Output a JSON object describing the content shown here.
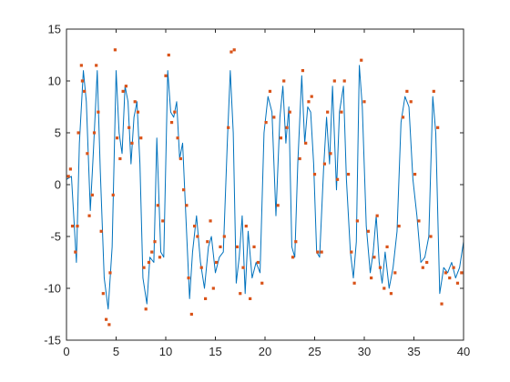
{
  "chart_data": {
    "type": "line",
    "title": "",
    "xlabel": "",
    "ylabel": "",
    "xlim": [
      0,
      40
    ],
    "ylim": [
      -15,
      15
    ],
    "xticks": [
      0,
      5,
      10,
      15,
      20,
      25,
      30,
      35,
      40
    ],
    "yticks": [
      -15,
      -10,
      -5,
      0,
      5,
      10,
      15
    ],
    "xtick_labels": [
      "0",
      "5",
      "10",
      "15",
      "20",
      "25",
      "30",
      "35",
      "40"
    ],
    "ytick_labels": [
      "-15",
      "-10",
      "-5",
      "0",
      "5",
      "10",
      "15"
    ],
    "grid": false,
    "legend": "none",
    "series": [
      {
        "type": "line",
        "color": "#0072BD",
        "x": [
          0,
          0.5,
          1.0,
          1.3,
          1.7,
          2.0,
          2.4,
          2.7,
          3.1,
          3.4,
          3.8,
          4.2,
          4.6,
          5.0,
          5.3,
          5.6,
          5.9,
          6.2,
          6.5,
          6.8,
          7.1,
          7.4,
          7.7,
          8.1,
          8.4,
          8.8,
          9.1,
          9.5,
          9.8,
          10.2,
          10.5,
          10.8,
          11.1,
          11.4,
          11.7,
          12.0,
          12.4,
          12.7,
          13.1,
          13.5,
          13.9,
          14.3,
          14.6,
          15.0,
          15.4,
          15.8,
          16.2,
          16.5,
          16.8,
          17.1,
          17.4,
          17.7,
          18.0,
          18.3,
          18.7,
          19.1,
          19.5,
          19.9,
          20.3,
          20.7,
          21.1,
          21.5,
          21.8,
          22.1,
          22.4,
          22.7,
          23.0,
          23.3,
          23.7,
          24.0,
          24.3,
          24.6,
          24.9,
          25.2,
          25.5,
          25.9,
          26.2,
          26.5,
          26.8,
          27.2,
          27.5,
          27.9,
          28.2,
          28.6,
          28.9,
          29.2,
          29.5,
          29.8,
          30.2,
          30.6,
          30.9,
          31.2,
          31.5,
          31.8,
          32.1,
          32.5,
          32.9,
          33.3,
          33.7,
          34.1,
          34.5,
          34.9,
          35.3,
          35.7,
          36.1,
          36.5,
          36.9,
          37.2,
          37.6,
          38.0,
          38.4,
          38.8,
          39.2,
          39.6,
          40.0
        ],
        "y": [
          0.5,
          0.8,
          -7.5,
          4.0,
          11.0,
          8.0,
          -2.5,
          3.0,
          11.0,
          1.5,
          -9.0,
          -12.0,
          -6.0,
          11.0,
          5.0,
          3.0,
          9.5,
          8.0,
          2.0,
          6.5,
          8.0,
          2.0,
          -9.0,
          -11.5,
          -7.0,
          -7.5,
          4.5,
          -6.5,
          -7.0,
          11.0,
          7.0,
          6.5,
          8.0,
          2.5,
          4.0,
          -2.5,
          -11.0,
          -6.5,
          -3.0,
          -7.5,
          -10.0,
          -6.0,
          -5.0,
          -8.5,
          -7.0,
          -6.5,
          4.0,
          11.0,
          5.0,
          -9.5,
          -7.0,
          -3.0,
          -10.5,
          -4.5,
          -9.0,
          -7.5,
          -8.5,
          5.0,
          8.5,
          7.0,
          -3.0,
          6.5,
          9.5,
          4.0,
          7.5,
          -6.0,
          -7.0,
          2.0,
          10.5,
          4.0,
          7.5,
          7.0,
          2.0,
          -6.5,
          -7.0,
          1.5,
          6.5,
          2.0,
          9.5,
          -0.5,
          7.0,
          9.5,
          0.5,
          -6.5,
          -9.0,
          -5.5,
          11.5,
          7.5,
          -4.0,
          -8.5,
          -6.5,
          -3.0,
          -7.5,
          -9.5,
          -6.5,
          -10.0,
          -8.0,
          -4.5,
          6.0,
          8.5,
          7.5,
          0.5,
          -3.0,
          -7.5,
          -7.0,
          -5.0,
          8.5,
          5.0,
          -10.5,
          -8.0,
          -8.5,
          -7.5,
          -9.0,
          -8.0,
          -5.5
        ]
      },
      {
        "type": "scatter",
        "color": "#D95319",
        "x": [
          0.2,
          0.4,
          0.6,
          0.9,
          1.1,
          1.2,
          1.5,
          1.6,
          1.8,
          2.1,
          2.3,
          2.6,
          2.8,
          3.0,
          3.2,
          3.5,
          3.7,
          4.0,
          4.3,
          4.4,
          4.7,
          4.9,
          5.1,
          5.4,
          5.7,
          6.0,
          6.3,
          6.6,
          6.9,
          7.2,
          7.5,
          7.8,
          8.0,
          8.3,
          8.6,
          8.9,
          9.2,
          9.4,
          9.7,
          10.0,
          10.3,
          10.6,
          10.9,
          11.2,
          11.5,
          11.8,
          12.1,
          12.3,
          12.6,
          12.9,
          13.2,
          13.6,
          14.0,
          14.2,
          14.5,
          14.8,
          15.1,
          15.5,
          15.9,
          16.3,
          16.6,
          16.9,
          17.2,
          17.5,
          17.8,
          18.1,
          18.5,
          18.9,
          19.3,
          19.7,
          20.1,
          20.5,
          20.9,
          21.3,
          21.6,
          21.9,
          22.2,
          22.5,
          22.8,
          23.1,
          23.5,
          23.8,
          24.1,
          24.4,
          24.7,
          25.0,
          25.3,
          25.7,
          26.0,
          26.3,
          26.6,
          27.0,
          27.3,
          27.7,
          28.0,
          28.4,
          28.7,
          29.0,
          29.3,
          29.7,
          30.0,
          30.4,
          30.7,
          31.0,
          31.3,
          31.6,
          32.0,
          32.3,
          32.7,
          33.1,
          33.5,
          33.9,
          34.3,
          34.7,
          35.1,
          35.5,
          35.9,
          36.3,
          36.7,
          37.0,
          37.4,
          37.8,
          38.2,
          38.6,
          39.0,
          39.4,
          39.8
        ],
        "y": [
          0.8,
          1.5,
          -4.0,
          -6.5,
          -4.0,
          5.0,
          11.5,
          10.0,
          9.0,
          3.0,
          -3.0,
          -1.0,
          5.0,
          11.5,
          7.0,
          -4.5,
          -10.5,
          -13.0,
          -13.5,
          -8.5,
          -1.0,
          13.0,
          4.5,
          2.5,
          9.0,
          9.5,
          5.5,
          4.0,
          8.0,
          7.0,
          4.5,
          -8.0,
          -12.0,
          -7.5,
          -6.5,
          -5.5,
          -2.0,
          -7.0,
          -3.5,
          10.5,
          12.5,
          6.0,
          7.0,
          4.5,
          2.5,
          -0.5,
          -2.0,
          -9.0,
          -12.5,
          -4.0,
          -5.0,
          -8.0,
          -11.0,
          -5.5,
          -3.5,
          -10.0,
          -7.5,
          -6.0,
          -5.0,
          5.5,
          12.8,
          13.0,
          -6.0,
          -10.5,
          -8.0,
          -4.0,
          -11.0,
          -6.0,
          -7.5,
          -9.5,
          6.0,
          9.0,
          6.5,
          -2.0,
          4.5,
          10.0,
          5.5,
          7.0,
          -7.0,
          -5.5,
          2.5,
          11.0,
          4.0,
          8.0,
          8.5,
          1.0,
          -6.5,
          -6.5,
          2.0,
          7.0,
          3.0,
          10.0,
          0.5,
          7.0,
          10.0,
          1.0,
          -6.5,
          -9.5,
          -3.5,
          12.0,
          8.0,
          -4.5,
          -9.0,
          -7.0,
          -3.0,
          -8.0,
          -10.0,
          -6.0,
          -10.5,
          -8.5,
          -4.0,
          6.5,
          9.0,
          8.0,
          1.0,
          -3.5,
          -8.0,
          -7.5,
          -5.0,
          9.0,
          5.5,
          -11.5,
          -8.5,
          -9.0,
          -8.0,
          -9.5,
          -8.5
        ]
      }
    ]
  }
}
